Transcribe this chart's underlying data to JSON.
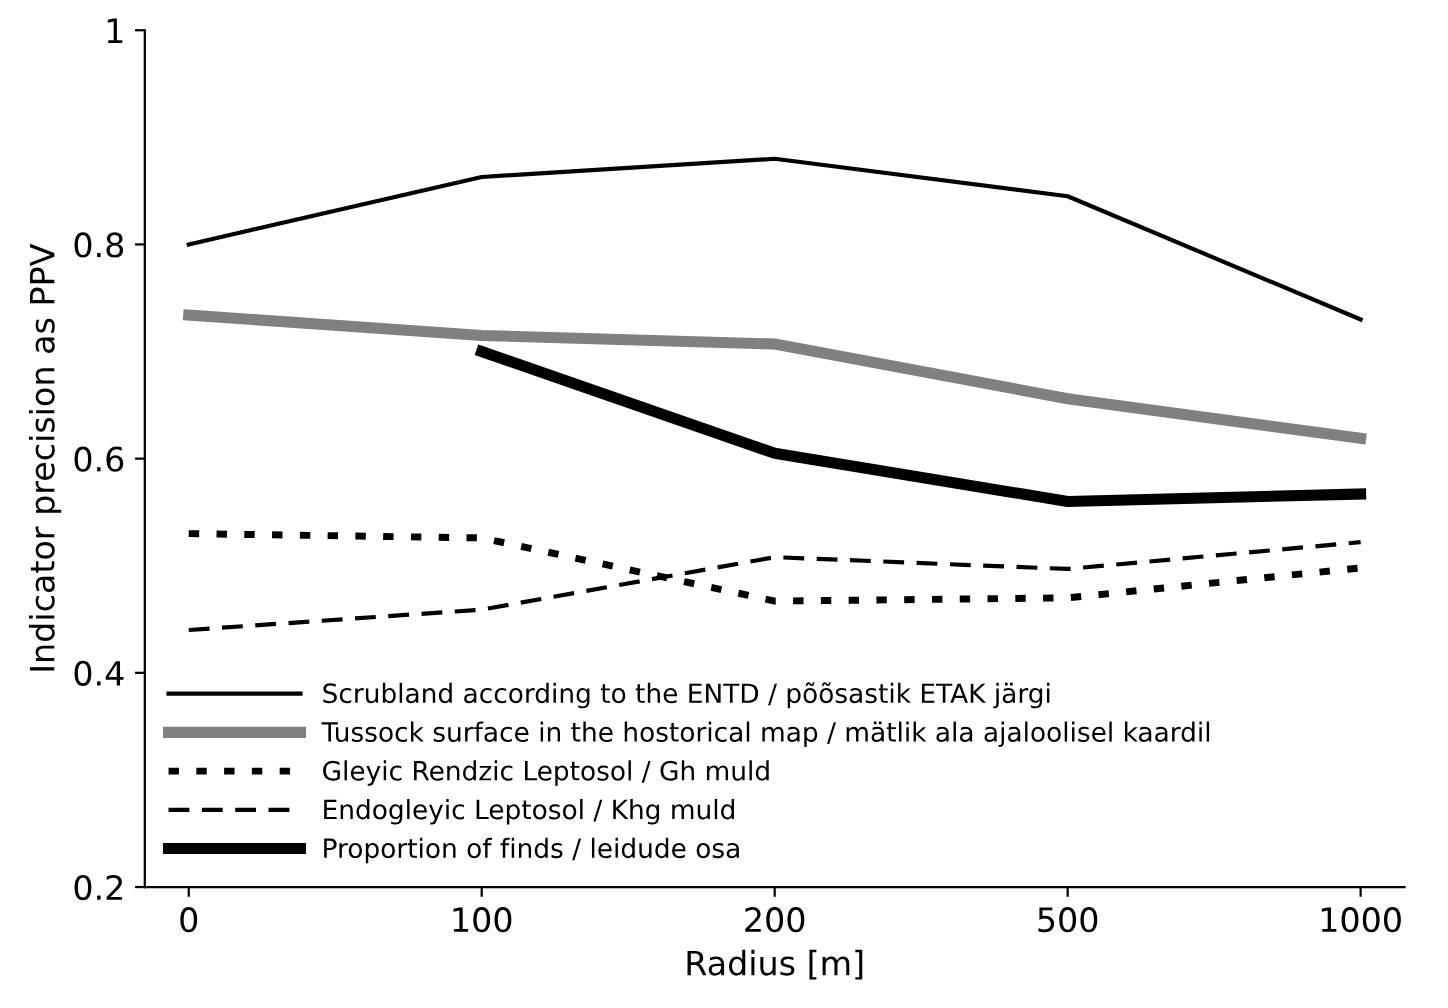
{
  "chart_data": {
    "type": "line",
    "xlabel": "Radius [m]",
    "ylabel": "Indicator precision as PPV",
    "categories": [
      "0",
      "100",
      "200",
      "500",
      "1000"
    ],
    "ylim": [
      0.2,
      1
    ],
    "yticks": [
      0.2,
      0.4,
      0.6,
      0.8,
      1
    ],
    "grid": false,
    "legend": "bottom left",
    "marker": "none",
    "series": [
      {
        "name": "Scrubland according to the ENTD / põõsastik ETAK järgi",
        "color": "#000000",
        "line_style": "solid",
        "values": [
          0.8,
          0.863,
          0.88,
          0.845,
          0.73
        ]
      },
      {
        "name": "Tussock surface in the hostorical map / mätlik ala ajaloolisel kaardil",
        "color": "#808080",
        "line_style": "solid",
        "values": [
          0.734,
          0.715,
          0.707,
          0.656,
          0.619
        ]
      },
      {
        "name": "Gleyic Rendzic Leptosol / Gh muld",
        "color": "#000000",
        "line_style": "dotted",
        "values": [
          0.53,
          0.526,
          0.467,
          0.47,
          0.498
        ]
      },
      {
        "name": "Endogleyic Leptosol / Khg muld",
        "color": "#000000",
        "line_style": "dashed",
        "values": [
          0.44,
          0.459,
          0.508,
          0.497,
          0.522
        ]
      },
      {
        "name": "Proportion of finds / leidude osa",
        "color": "#000000",
        "line_style": "solid",
        "values": [
          null,
          0.7,
          0.605,
          0.56,
          0.567
        ]
      }
    ]
  }
}
